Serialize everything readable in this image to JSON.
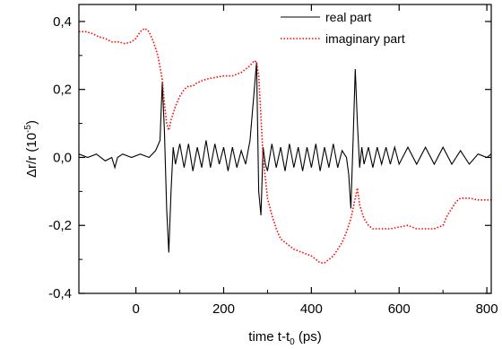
{
  "chart_data": {
    "type": "line",
    "xlabel_main": "time t-t",
    "xlabel_sub": "0",
    "xlabel_unit": " (ps)",
    "ylabel_main": "Δr/r (10",
    "ylabel_sup": "-5",
    "ylabel_close": ")",
    "xlim": [
      -130,
      810
    ],
    "ylim": [
      -0.4,
      0.45
    ],
    "xticks": [
      0,
      200,
      400,
      600,
      800
    ],
    "xtick_labels": [
      "0",
      "200",
      "400",
      "600",
      "800"
    ],
    "yticks": [
      -0.4,
      -0.2,
      0.0,
      0.2,
      0.4
    ],
    "ytick_labels": [
      "-0,4",
      "-0,2",
      "0,0",
      "0,2",
      "0,4"
    ],
    "grid": false,
    "legend_position": "top-right",
    "series": [
      {
        "name": "real part",
        "color": "#000000",
        "style": "solid",
        "x": [
          -130,
          -110,
          -90,
          -70,
          -55,
          -48,
          -42,
          -30,
          -10,
          10,
          30,
          45,
          55,
          60,
          65,
          70,
          75,
          80,
          85,
          90,
          100,
          110,
          120,
          130,
          140,
          150,
          160,
          170,
          180,
          190,
          200,
          210,
          220,
          230,
          240,
          250,
          260,
          270,
          275,
          280,
          285,
          290,
          295,
          300,
          310,
          320,
          330,
          340,
          350,
          360,
          370,
          380,
          390,
          400,
          410,
          420,
          430,
          440,
          450,
          460,
          470,
          480,
          485,
          490,
          495,
          500,
          505,
          510,
          515,
          520,
          530,
          540,
          550,
          560,
          570,
          580,
          590,
          600,
          620,
          640,
          660,
          680,
          700,
          720,
          740,
          760,
          780,
          800,
          810
        ],
        "y": [
          0.01,
          0.0,
          0.01,
          -0.01,
          0.0,
          -0.03,
          0.0,
          0.01,
          0.0,
          0.01,
          0.0,
          0.02,
          0.05,
          0.22,
          0.08,
          -0.15,
          -0.28,
          -0.1,
          0.03,
          -0.02,
          0.04,
          -0.03,
          0.04,
          -0.04,
          0.03,
          -0.03,
          0.05,
          -0.03,
          0.04,
          -0.02,
          0.03,
          -0.04,
          0.03,
          -0.03,
          0.02,
          -0.02,
          0.05,
          0.2,
          0.28,
          -0.1,
          -0.17,
          0.03,
          -0.02,
          -0.04,
          0.04,
          -0.03,
          0.03,
          -0.04,
          0.04,
          -0.03,
          0.03,
          -0.04,
          0.03,
          -0.03,
          0.04,
          -0.04,
          0.03,
          -0.03,
          0.04,
          -0.03,
          0.02,
          0.0,
          -0.05,
          -0.15,
          0.05,
          0.26,
          0.1,
          -0.03,
          0.03,
          -0.02,
          0.03,
          -0.03,
          0.03,
          -0.02,
          0.03,
          -0.02,
          0.03,
          -0.02,
          0.03,
          -0.02,
          0.03,
          -0.02,
          0.03,
          -0.02,
          0.02,
          -0.02,
          0.01,
          0.0,
          0.01
        ]
      },
      {
        "name": "imaginary part",
        "color": "#ff0000",
        "style": "dotted",
        "x": [
          -130,
          -115,
          -100,
          -85,
          -70,
          -55,
          -40,
          -25,
          -10,
          0,
          10,
          20,
          30,
          40,
          50,
          60,
          65,
          70,
          75,
          80,
          90,
          100,
          110,
          120,
          130,
          140,
          160,
          180,
          200,
          220,
          240,
          260,
          270,
          275,
          280,
          285,
          290,
          295,
          300,
          310,
          320,
          330,
          340,
          350,
          360,
          380,
          400,
          410,
          420,
          430,
          440,
          450,
          460,
          470,
          480,
          490,
          500,
          505,
          510,
          520,
          530,
          540,
          560,
          580,
          600,
          620,
          640,
          660,
          680,
          700,
          710,
          720,
          730,
          740,
          760,
          780,
          800,
          810
        ],
        "y": [
          0.37,
          0.37,
          0.365,
          0.355,
          0.35,
          0.34,
          0.34,
          0.335,
          0.34,
          0.35,
          0.37,
          0.38,
          0.37,
          0.34,
          0.3,
          0.23,
          0.16,
          0.1,
          0.08,
          0.11,
          0.15,
          0.18,
          0.2,
          0.21,
          0.21,
          0.22,
          0.23,
          0.235,
          0.24,
          0.24,
          0.25,
          0.27,
          0.285,
          0.28,
          0.24,
          0.12,
          0.0,
          -0.06,
          -0.12,
          -0.17,
          -0.21,
          -0.24,
          -0.25,
          -0.26,
          -0.27,
          -0.28,
          -0.29,
          -0.3,
          -0.31,
          -0.31,
          -0.3,
          -0.29,
          -0.27,
          -0.25,
          -0.22,
          -0.18,
          -0.12,
          -0.09,
          -0.14,
          -0.18,
          -0.2,
          -0.21,
          -0.21,
          -0.21,
          -0.205,
          -0.2,
          -0.21,
          -0.21,
          -0.21,
          -0.2,
          -0.17,
          -0.15,
          -0.13,
          -0.12,
          -0.12,
          -0.125,
          -0.125,
          -0.125
        ]
      }
    ]
  }
}
